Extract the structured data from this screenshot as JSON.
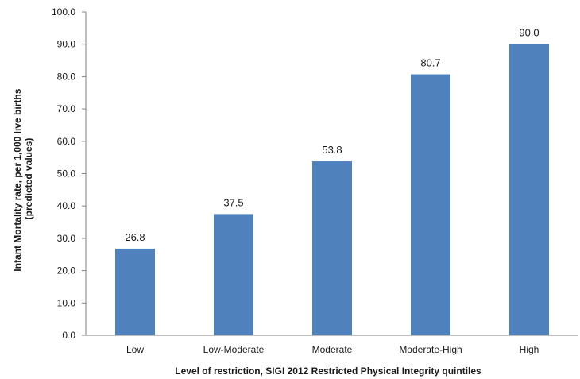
{
  "chart_data": {
    "type": "bar",
    "categories": [
      "Low",
      "Low-Moderate",
      "Moderate",
      "Moderate-High",
      "High"
    ],
    "values": [
      26.8,
      37.5,
      53.8,
      80.7,
      90.0
    ],
    "data_labels": [
      "26.8",
      "37.5",
      "53.8",
      "80.7",
      "90.0"
    ],
    "yticks": [
      "0.0",
      "10.0",
      "20.0",
      "30.0",
      "40.0",
      "50.0",
      "60.0",
      "70.0",
      "80.0",
      "90.0",
      "100.0"
    ],
    "ylim": [
      0,
      100
    ],
    "xlabel": "Level of restriction, SIGI 2012 Restricted Physical Integrity quintiles",
    "ylabel_line1": "Infant Mortality rate,  per 1,000 live births",
    "ylabel_line2": "(predicted values)",
    "grid": false,
    "legend": "none",
    "bar_color": "#4f81bd"
  }
}
